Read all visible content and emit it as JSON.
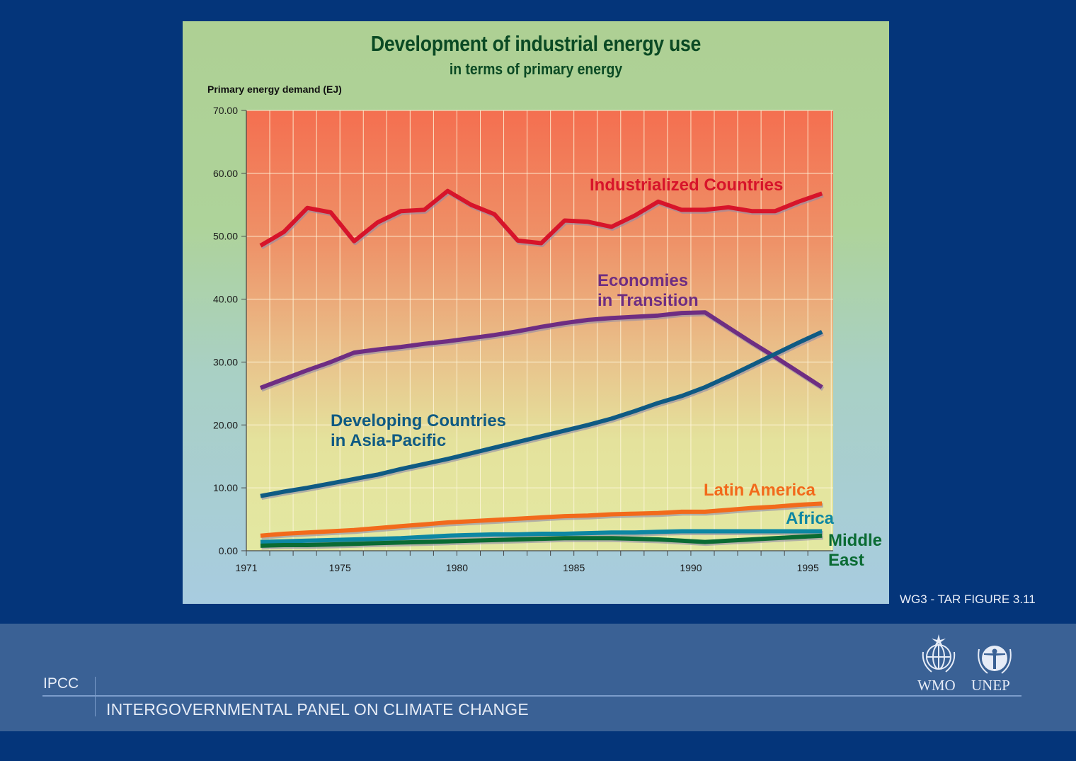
{
  "figure_reference": "WG3 - TAR FIGURE 3.11",
  "banner": {
    "short_name": "IPCC",
    "long_name": "INTERGOVERNMENTAL PANEL ON CLIMATE CHANGE",
    "logos": [
      {
        "name": "wmo-logo-icon",
        "label": "WMO"
      },
      {
        "name": "unep-logo-icon",
        "label": "UNEP"
      }
    ]
  },
  "chart_data": {
    "type": "line",
    "title": "Development of industrial energy use",
    "subtitle": "in terms of primary energy",
    "xlabel": "",
    "ylabel": "Primary energy demand (EJ)",
    "xlim": [
      1971,
      1996
    ],
    "ylim": [
      0,
      70
    ],
    "yticks": [
      "0.00",
      "10.00",
      "20.00",
      "30.00",
      "40.00",
      "50.00",
      "60.00",
      "70.00"
    ],
    "xticks": [
      "1971",
      "1975",
      "1980",
      "1985",
      "1990",
      "1995"
    ],
    "grid": true,
    "legend": "inline labels",
    "x": [
      1971,
      1972,
      1973,
      1974,
      1975,
      1976,
      1977,
      1978,
      1979,
      1980,
      1981,
      1982,
      1983,
      1984,
      1985,
      1986,
      1987,
      1988,
      1989,
      1990,
      1991,
      1992,
      1993,
      1994,
      1995
    ],
    "series": [
      {
        "name": "Industrialized Countries",
        "label_lines": [
          "Industrialized Countries"
        ],
        "color": "#d7142a",
        "values": [
          48.5,
          50.7,
          54.5,
          53.8,
          49.2,
          52.2,
          54.0,
          54.2,
          57.2,
          55.0,
          53.5,
          49.3,
          48.9,
          52.5,
          52.3,
          51.5,
          53.3,
          55.5,
          54.2,
          54.2,
          54.6,
          54.0,
          54.0,
          55.5,
          56.8
        ]
      },
      {
        "name": "Economies in Transition",
        "label_lines": [
          "Economies",
          "in Transition"
        ],
        "color": "#6e2d82",
        "values": [
          25.9,
          27.3,
          28.7,
          30.0,
          31.5,
          32.0,
          32.4,
          32.9,
          33.3,
          33.8,
          34.3,
          34.9,
          35.6,
          36.2,
          36.7,
          37.0,
          37.2,
          37.4,
          37.8,
          37.9,
          35.5,
          33.1,
          30.8,
          28.4,
          26.0
        ]
      },
      {
        "name": "Developing Countries in Asia-Pacific",
        "label_lines": [
          "Developing Countries",
          "in Asia-Pacific"
        ],
        "color": "#0f5a83",
        "values": [
          8.7,
          9.4,
          10.0,
          10.7,
          11.4,
          12.1,
          13.0,
          13.8,
          14.6,
          15.5,
          16.4,
          17.3,
          18.2,
          19.1,
          20.0,
          21.0,
          22.2,
          23.5,
          24.6,
          26.0,
          27.7,
          29.5,
          31.3,
          33.1,
          34.8
        ]
      },
      {
        "name": "Latin America",
        "label_lines": [
          "Latin America"
        ],
        "color": "#f26a1b",
        "values": [
          2.4,
          2.7,
          2.9,
          3.1,
          3.3,
          3.6,
          3.9,
          4.2,
          4.5,
          4.7,
          4.9,
          5.1,
          5.3,
          5.5,
          5.6,
          5.8,
          5.9,
          6.0,
          6.2,
          6.2,
          6.5,
          6.8,
          7.0,
          7.3,
          7.5
        ]
      },
      {
        "name": "Africa",
        "label_lines": [
          "Africa"
        ],
        "color": "#0d87a3",
        "values": [
          1.4,
          1.5,
          1.6,
          1.7,
          1.8,
          1.9,
          2.0,
          2.2,
          2.4,
          2.5,
          2.6,
          2.6,
          2.7,
          2.7,
          2.8,
          2.9,
          2.9,
          3.0,
          3.1,
          3.1,
          3.1,
          3.1,
          3.1,
          3.1,
          3.1
        ]
      },
      {
        "name": "Middle East",
        "label_lines": [
          "Middle",
          "East"
        ],
        "color": "#0a6b33",
        "values": [
          0.8,
          0.9,
          0.9,
          1.0,
          1.1,
          1.2,
          1.3,
          1.4,
          1.5,
          1.6,
          1.7,
          1.8,
          1.9,
          2.0,
          2.0,
          2.0,
          1.9,
          1.8,
          1.6,
          1.4,
          1.6,
          1.8,
          2.0,
          2.2,
          2.4
        ]
      }
    ]
  }
}
